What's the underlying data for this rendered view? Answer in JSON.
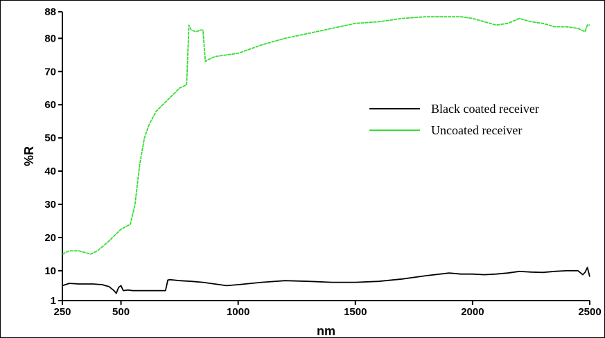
{
  "chart_data": {
    "type": "line",
    "title": "",
    "xlabel": "nm",
    "ylabel": "%R",
    "xlim": [
      250,
      2500
    ],
    "ylim": [
      1,
      88
    ],
    "x_ticks": [
      250,
      500,
      1000,
      1500,
      2000,
      2500
    ],
    "x_tick_labels": [
      "250",
      "500",
      "1000",
      "1500",
      "2000",
      "2500"
    ],
    "y_ticks": [
      1,
      10,
      20,
      30,
      40,
      50,
      60,
      70,
      80,
      88
    ],
    "y_tick_labels": [
      "1",
      "10",
      "20",
      "30",
      "40",
      "50",
      "60",
      "70",
      "80",
      "88"
    ],
    "grid": false,
    "legend_position": "center-right",
    "series": [
      {
        "name": "Black coated receiver",
        "color": "#000000",
        "x": [
          250,
          280,
          320,
          380,
          420,
          450,
          470,
          480,
          490,
          500,
          510,
          530,
          550,
          600,
          650,
          690,
          700,
          710,
          750,
          800,
          850,
          900,
          950,
          1000,
          1100,
          1200,
          1300,
          1400,
          1500,
          1600,
          1700,
          1800,
          1900,
          1950,
          2000,
          2050,
          2100,
          2150,
          2200,
          2250,
          2300,
          2350,
          2400,
          2450,
          2470,
          2480,
          2490,
          2500
        ],
        "y": [
          5.5,
          6.2,
          6.0,
          6.0,
          5.8,
          5.2,
          4.0,
          3.2,
          5.0,
          5.5,
          4.0,
          4.2,
          4.0,
          4.0,
          4.0,
          4.0,
          7.2,
          7.3,
          7.0,
          6.8,
          6.5,
          6.0,
          5.5,
          5.8,
          6.5,
          7.0,
          6.8,
          6.5,
          6.5,
          6.8,
          7.5,
          8.5,
          9.3,
          9.0,
          9.0,
          8.8,
          9.0,
          9.3,
          9.8,
          9.6,
          9.5,
          9.8,
          10.0,
          10.0,
          8.8,
          9.5,
          11.0,
          8.2
        ]
      },
      {
        "name": "Uncoated receiver",
        "color": "#33dd33",
        "x": [
          250,
          280,
          320,
          370,
          400,
          450,
          500,
          540,
          560,
          580,
          600,
          620,
          650,
          700,
          750,
          780,
          790,
          800,
          820,
          840,
          850,
          860,
          870,
          900,
          1000,
          1100,
          1200,
          1300,
          1400,
          1500,
          1600,
          1700,
          1800,
          1900,
          1950,
          2000,
          2050,
          2100,
          2150,
          2200,
          2250,
          2300,
          2350,
          2400,
          2450,
          2480,
          2490,
          2500
        ],
        "y": [
          15.0,
          16.0,
          16.0,
          15.0,
          16.0,
          19.0,
          22.5,
          24.0,
          30.0,
          42.0,
          50.0,
          54.0,
          58.0,
          61.5,
          65.0,
          66.0,
          84.0,
          82.5,
          82.0,
          82.5,
          82.5,
          73.0,
          73.5,
          74.5,
          75.5,
          78.0,
          80.0,
          81.5,
          83.0,
          84.5,
          85.0,
          86.0,
          86.5,
          86.5,
          86.5,
          86.0,
          85.0,
          84.0,
          84.5,
          86.0,
          85.0,
          84.5,
          83.5,
          83.5,
          83.0,
          82.0,
          84.0,
          84.0
        ]
      }
    ]
  }
}
